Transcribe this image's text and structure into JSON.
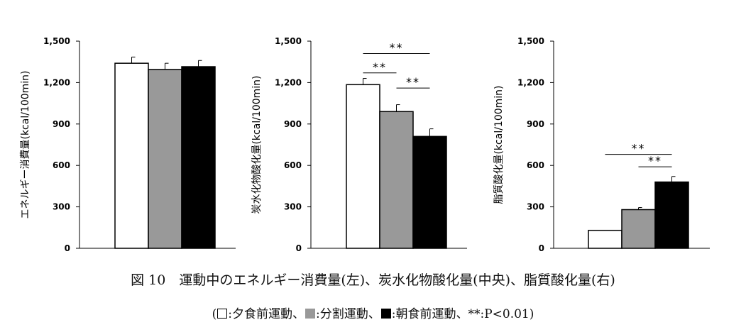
{
  "chart_data": [
    {
      "type": "bar",
      "title": "",
      "ylabel": "エネルギー消費量(kcal/100min)",
      "ylim": [
        0,
        1500
      ],
      "yticks": [
        "0",
        "300",
        "600",
        "900",
        "1,200",
        "1,500"
      ],
      "series": [
        {
          "values": [
            1340
          ],
          "errors": [
            45
          ],
          "color": "#ffffff"
        },
        {
          "values": [
            1295
          ],
          "errors": [
            45
          ],
          "color": "#999999"
        },
        {
          "values": [
            1315
          ],
          "errors": [
            45
          ],
          "color": "#000000"
        }
      ],
      "annotations": []
    },
    {
      "type": "bar",
      "title": "",
      "ylabel": "炭水化物酸化量(kcal/100min)",
      "ylim": [
        0,
        1500
      ],
      "yticks": [
        "0",
        "300",
        "600",
        "900",
        "1,200",
        "1,500"
      ],
      "series": [
        {
          "values": [
            1185
          ],
          "errors": [
            45
          ],
          "color": "#ffffff"
        },
        {
          "values": [
            990
          ],
          "errors": [
            50
          ],
          "color": "#999999"
        },
        {
          "values": [
            810
          ],
          "errors": [
            55
          ],
          "color": "#000000"
        }
      ],
      "annotations": [
        {
          "from": 0,
          "to": 2,
          "level": 1410,
          "text": "**"
        },
        {
          "from": 0,
          "to": 1,
          "level": 1270,
          "text": "**"
        },
        {
          "from": 1,
          "to": 2,
          "level": 1160,
          "text": "**"
        }
      ]
    },
    {
      "type": "bar",
      "title": "",
      "ylabel": "脂質酸化量(kcal/100min)",
      "ylim": [
        0,
        1500
      ],
      "yticks": [
        "0",
        "300",
        "600",
        "900",
        "1,200",
        "1,500"
      ],
      "series": [
        {
          "values": [
            130
          ],
          "errors": [
            0
          ],
          "color": "#ffffff"
        },
        {
          "values": [
            280
          ],
          "errors": [
            15
          ],
          "color": "#999999"
        },
        {
          "values": [
            480
          ],
          "errors": [
            40
          ],
          "color": "#000000"
        }
      ],
      "annotations": [
        {
          "from": 0,
          "to": 2,
          "level": 680,
          "text": "**"
        },
        {
          "from": 1,
          "to": 2,
          "level": 590,
          "text": "**"
        }
      ]
    }
  ],
  "caption": {
    "title": "図 10　運動中のエネルギー消費量(左)、炭水化物酸化量(中央)、脂質酸化量(右)",
    "legend_open": "(",
    "legend_items": [
      {
        "text": ":夕食前運動、",
        "color": "#ffffff"
      },
      {
        "text": ":分割運動、",
        "color": "#999999"
      },
      {
        "text": ":朝食前運動、",
        "color": "#000000"
      }
    ],
    "legend_note": "**:P<0.01)"
  }
}
